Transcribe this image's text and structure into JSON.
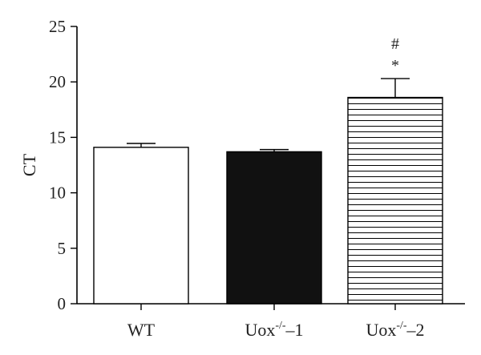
{
  "chart_data": {
    "type": "bar",
    "title": "",
    "xlabel": "",
    "ylabel": "CT",
    "ylim": [
      0,
      25
    ],
    "yticks": [
      0,
      5,
      10,
      15,
      20,
      25
    ],
    "grid": false,
    "categories": [
      {
        "base": "WT",
        "sup": "",
        "suffix": ""
      },
      {
        "base": "Uox",
        "sup": "-/-",
        "suffix": "–1"
      },
      {
        "base": "Uox",
        "sup": "-/-",
        "suffix": "–2"
      }
    ],
    "values": [
      14.1,
      13.7,
      18.6
    ],
    "errors": [
      0.35,
      0.2,
      1.7
    ],
    "fills": [
      "white",
      "black",
      "hlines"
    ],
    "annotations": [
      {
        "category_index": 2,
        "lines": [
          "#",
          "*"
        ]
      }
    ]
  },
  "colors": {
    "bar_stroke": "#000000",
    "bar_fill_solid": "#111111",
    "background": "#ffffff"
  }
}
